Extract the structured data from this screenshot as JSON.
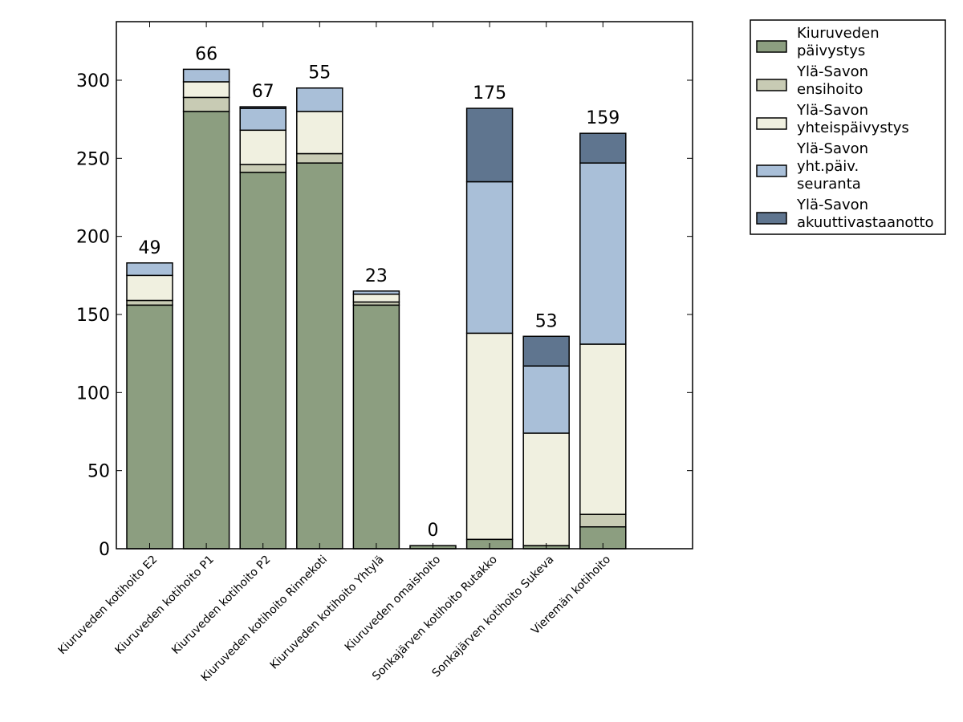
{
  "chart_data": {
    "type": "stacked_bar",
    "categories": [
      "Kiuruveden kotihoito E2",
      "Kiuruveden kotihoito P1",
      "Kiuruveden kotihoito P2",
      "Kiuruveden kotihoito Rinnekoti",
      "Kiuruveden kotihoito Yhtylä",
      "Kiuruveden omaishoito",
      "Sonkajärven kotihoito Rutakko",
      "Sonkajärven kotihoito Sukeva",
      "Vieremän kotihoito"
    ],
    "series": [
      {
        "name": "Kiuruveden päivystys",
        "color": "#8c9e80",
        "values": [
          156,
          280,
          241,
          247,
          156,
          2,
          6,
          2,
          14
        ]
      },
      {
        "name": "Ylä-Savon ensihoito",
        "color": "#c8cbb4",
        "values": [
          3,
          9,
          5,
          6,
          2,
          0,
          0,
          0,
          8
        ]
      },
      {
        "name": "Ylä-Savon yhteispäivystys",
        "color": "#f0f0e0",
        "values": [
          16,
          10,
          22,
          27,
          5,
          0,
          132,
          72,
          109
        ]
      },
      {
        "name": "Ylä-Savon yht.päiv. seuranta",
        "color": "#a9bfd8",
        "values": [
          8,
          8,
          14,
          15,
          2,
          0,
          97,
          43,
          116
        ]
      },
      {
        "name": "Ylä-Savon akuuttivastaanotto",
        "color": "#5f758f",
        "values": [
          0,
          0,
          1,
          0,
          0,
          0,
          47,
          19,
          19
        ]
      }
    ],
    "bar_labels": [
      49,
      66,
      67,
      55,
      23,
      0,
      175,
      53,
      159
    ],
    "ylim": [
      0,
      337.5
    ],
    "yticks": [
      0,
      50,
      100,
      150,
      200,
      250,
      300
    ],
    "legend": "outside-upper-right"
  }
}
